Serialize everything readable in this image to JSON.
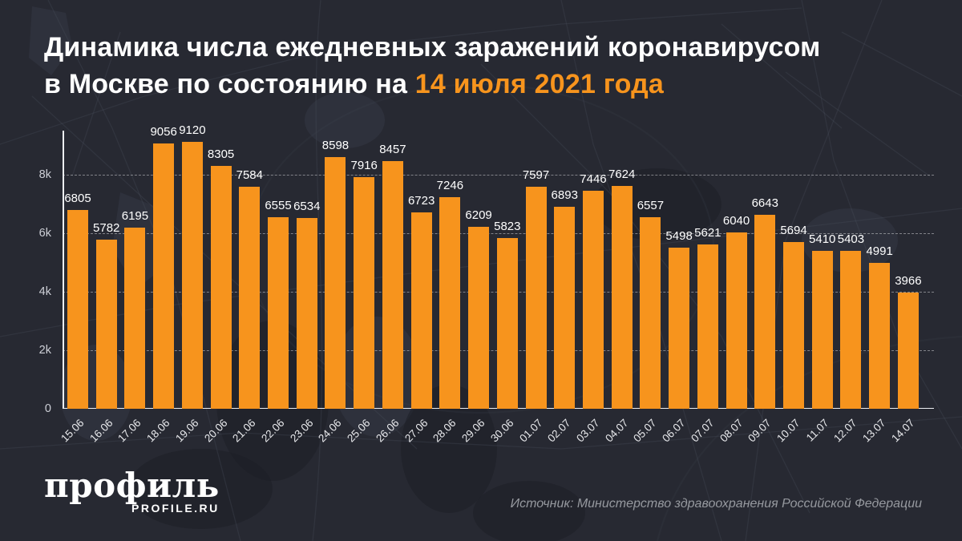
{
  "title": {
    "line1": "Динамика числа ежедневных заражений коронавирусом",
    "line2_prefix": "в Москве по состоянию на ",
    "line2_highlight": "14 июля 2021 года"
  },
  "chart_data": {
    "type": "bar",
    "title": "Динамика числа ежедневных заражений коронавирусом в Москве по состоянию на 14 июля 2021 года",
    "xlabel": "",
    "ylabel": "",
    "ylim": [
      0,
      10000
    ],
    "grid": "horizontal-dashed",
    "legend": "none",
    "bar_color": "#f7941d",
    "categories": [
      "15.06",
      "16.06",
      "17.06",
      "18.06",
      "19.06",
      "20.06",
      "21.06",
      "22.06",
      "23.06",
      "24.06",
      "25.06",
      "26.06",
      "27.06",
      "28.06",
      "29.06",
      "30.06",
      "01.07",
      "02.07",
      "03.07",
      "04.07",
      "05.07",
      "06.07",
      "07.07",
      "08.07",
      "09.07",
      "10.07",
      "11.07",
      "12.07",
      "13.07",
      "14.07"
    ],
    "values": [
      6805,
      5782,
      6195,
      9056,
      9120,
      8305,
      7584,
      6555,
      6534,
      8598,
      7916,
      8457,
      6723,
      7246,
      6209,
      5823,
      7597,
      6893,
      7446,
      7624,
      6557,
      5498,
      5621,
      6040,
      6643,
      5694,
      5410,
      5403,
      4991,
      3966
    ],
    "yticks": [
      {
        "label": "0",
        "value": 0
      },
      {
        "label": "2k",
        "value": 2000
      },
      {
        "label": "4k",
        "value": 4000
      },
      {
        "label": "6k",
        "value": 6000
      },
      {
        "label": "8k",
        "value": 8000
      }
    ]
  },
  "footer": {
    "logo_text": "профиль",
    "logo_subtext": "PROFILE.RU",
    "source": "Источник: Министерство здравоохранения Российской Федерации"
  },
  "colors": {
    "background": "#272932",
    "bar": "#f7941d",
    "accent": "#f7941d",
    "title_text": "#ffffff",
    "muted_text": "#96999f"
  }
}
